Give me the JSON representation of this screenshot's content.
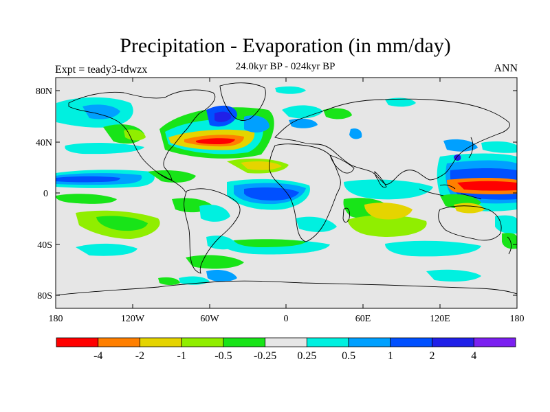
{
  "title": "Precipitation - Evaporation (in mm/day)",
  "subtitle": "24.0kyr BP - 024kyr BP",
  "left_label": "Expt = teady3-tdwzx",
  "right_label": "ANN",
  "y_ticks": [
    "80N",
    "40N",
    "0",
    "40S",
    "80S"
  ],
  "x_ticks": [
    "180",
    "120W",
    "60W",
    "0",
    "60E",
    "120E",
    "180"
  ],
  "colorbar": {
    "colors": [
      "#ff0000",
      "#ff7f00",
      "#e5d400",
      "#90ee00",
      "#18e418",
      "#e6e6e6",
      "#00f0e0",
      "#00a0ff",
      "#0050ff",
      "#2020e8",
      "#7b20f0"
    ],
    "labels": [
      "-4",
      "-2",
      "-1",
      "-0.5",
      "-0.25",
      "0.25",
      "0.5",
      "1",
      "2",
      "4"
    ]
  },
  "colors": {
    "background": "#e6e6e6",
    "land": "#e6e6e6",
    "coast": "#000000"
  }
}
